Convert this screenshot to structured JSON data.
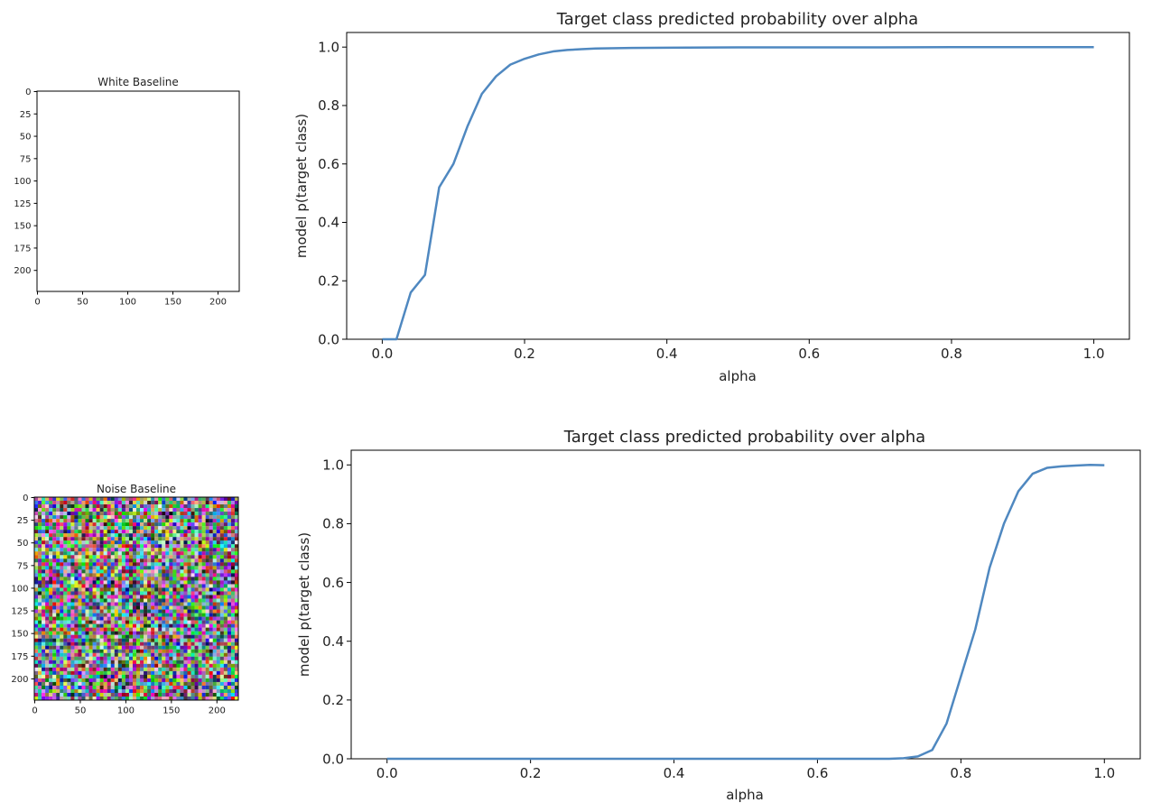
{
  "chart_data": [
    {
      "type": "image",
      "title": "White Baseline",
      "fill": "white",
      "xticks": [
        0,
        50,
        100,
        150,
        200
      ],
      "yticks": [
        0,
        25,
        50,
        75,
        100,
        125,
        150,
        175,
        200
      ],
      "xlim": [
        -0.5,
        223.5
      ],
      "ylim": [
        223.5,
        -0.5
      ]
    },
    {
      "type": "line",
      "title": "Target class predicted probability over alpha",
      "xlabel": "alpha",
      "ylabel": "model p(target class)",
      "xlim": [
        -0.05,
        1.05
      ],
      "ylim": [
        0,
        1.05
      ],
      "xticks": [
        0.0,
        0.2,
        0.4,
        0.6,
        0.8,
        1.0
      ],
      "yticks": [
        0.0,
        0.2,
        0.4,
        0.6,
        0.8,
        1.0
      ],
      "line_color": "#4f88c0",
      "series": [
        {
          "x": [
            0.0,
            0.02,
            0.04,
            0.06,
            0.08,
            0.1,
            0.12,
            0.14,
            0.16,
            0.18,
            0.2,
            0.22,
            0.24,
            0.26,
            0.28,
            0.3,
            0.35,
            0.4,
            0.5,
            0.6,
            0.7,
            0.8,
            0.9,
            1.0
          ],
          "values": [
            0.0,
            0.0,
            0.16,
            0.22,
            0.52,
            0.6,
            0.73,
            0.84,
            0.9,
            0.94,
            0.96,
            0.975,
            0.985,
            0.99,
            0.993,
            0.995,
            0.997,
            0.998,
            0.999,
            0.999,
            0.999,
            1.0,
            1.0,
            1.0
          ]
        }
      ]
    },
    {
      "type": "image",
      "title": "Noise Baseline",
      "fill": "random-noise",
      "xticks": [
        0,
        50,
        100,
        150,
        200
      ],
      "yticks": [
        0,
        25,
        50,
        75,
        100,
        125,
        150,
        175,
        200
      ],
      "xlim": [
        -0.5,
        223.5
      ],
      "ylim": [
        223.5,
        -0.5
      ]
    },
    {
      "type": "line",
      "title": "Target class predicted probability over alpha",
      "xlabel": "alpha",
      "ylabel": "model p(target class)",
      "xlim": [
        -0.05,
        1.05
      ],
      "ylim": [
        0,
        1.05
      ],
      "xticks": [
        0.0,
        0.2,
        0.4,
        0.6,
        0.8,
        1.0
      ],
      "yticks": [
        0.0,
        0.2,
        0.4,
        0.6,
        0.8,
        1.0
      ],
      "line_color": "#4f88c0",
      "series": [
        {
          "x": [
            0.0,
            0.1,
            0.2,
            0.3,
            0.4,
            0.5,
            0.6,
            0.7,
            0.72,
            0.74,
            0.76,
            0.78,
            0.8,
            0.82,
            0.84,
            0.86,
            0.88,
            0.9,
            0.92,
            0.94,
            0.96,
            0.98,
            1.0
          ],
          "values": [
            0.0,
            0.0,
            0.0,
            0.0,
            0.0,
            0.0,
            0.0,
            0.0,
            0.002,
            0.008,
            0.03,
            0.12,
            0.28,
            0.44,
            0.65,
            0.8,
            0.91,
            0.97,
            0.99,
            0.995,
            0.998,
            1.0,
            0.999
          ]
        }
      ]
    }
  ]
}
